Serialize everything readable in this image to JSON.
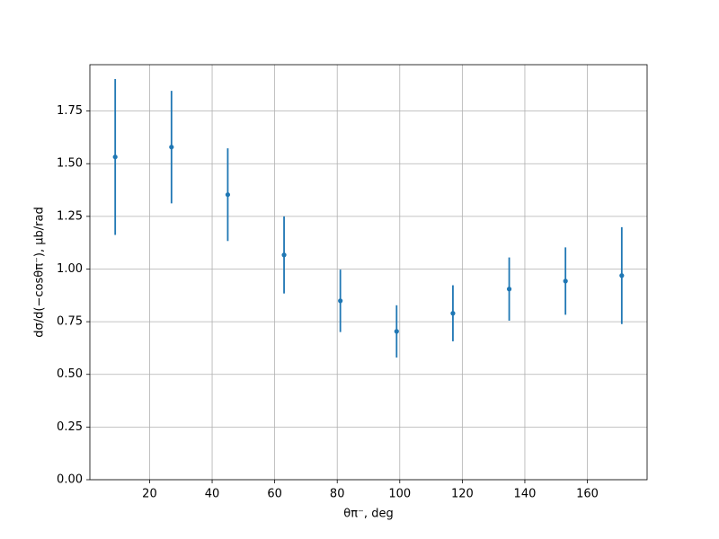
{
  "chart_data": {
    "type": "errorbar",
    "x_label": "θπ⁻, deg",
    "y_label": "dσ/d(−cosθπ⁻), μb/rad",
    "x": [
      9,
      27,
      45,
      63,
      81,
      99,
      117,
      135,
      153,
      171
    ],
    "series": [
      {
        "color": "#1f77b4",
        "values": [
          1.532,
          1.579,
          1.353,
          1.067,
          0.849,
          0.704,
          0.79,
          0.905,
          0.943,
          0.969
        ],
        "errors": [
          0.37,
          0.267,
          0.22,
          0.183,
          0.148,
          0.124,
          0.133,
          0.15,
          0.16,
          0.23
        ]
      }
    ],
    "xlim": [
      0.9,
      179.1
    ],
    "ylim": [
      0,
      1.97
    ],
    "xticks": [
      20,
      40,
      60,
      80,
      100,
      120,
      140,
      160
    ],
    "yticks": [
      {
        "value": 0,
        "label": "0.00"
      },
      {
        "value": 0.25,
        "label": "0.25"
      },
      {
        "value": 0.5,
        "label": "0.50"
      },
      {
        "value": 0.75,
        "label": "0.75"
      },
      {
        "value": 1,
        "label": "1.00"
      },
      {
        "value": 1.25,
        "label": "1.25"
      },
      {
        "value": 1.5,
        "label": "1.50"
      },
      {
        "value": 1.75,
        "label": "1.75"
      }
    ],
    "grid": true
  }
}
